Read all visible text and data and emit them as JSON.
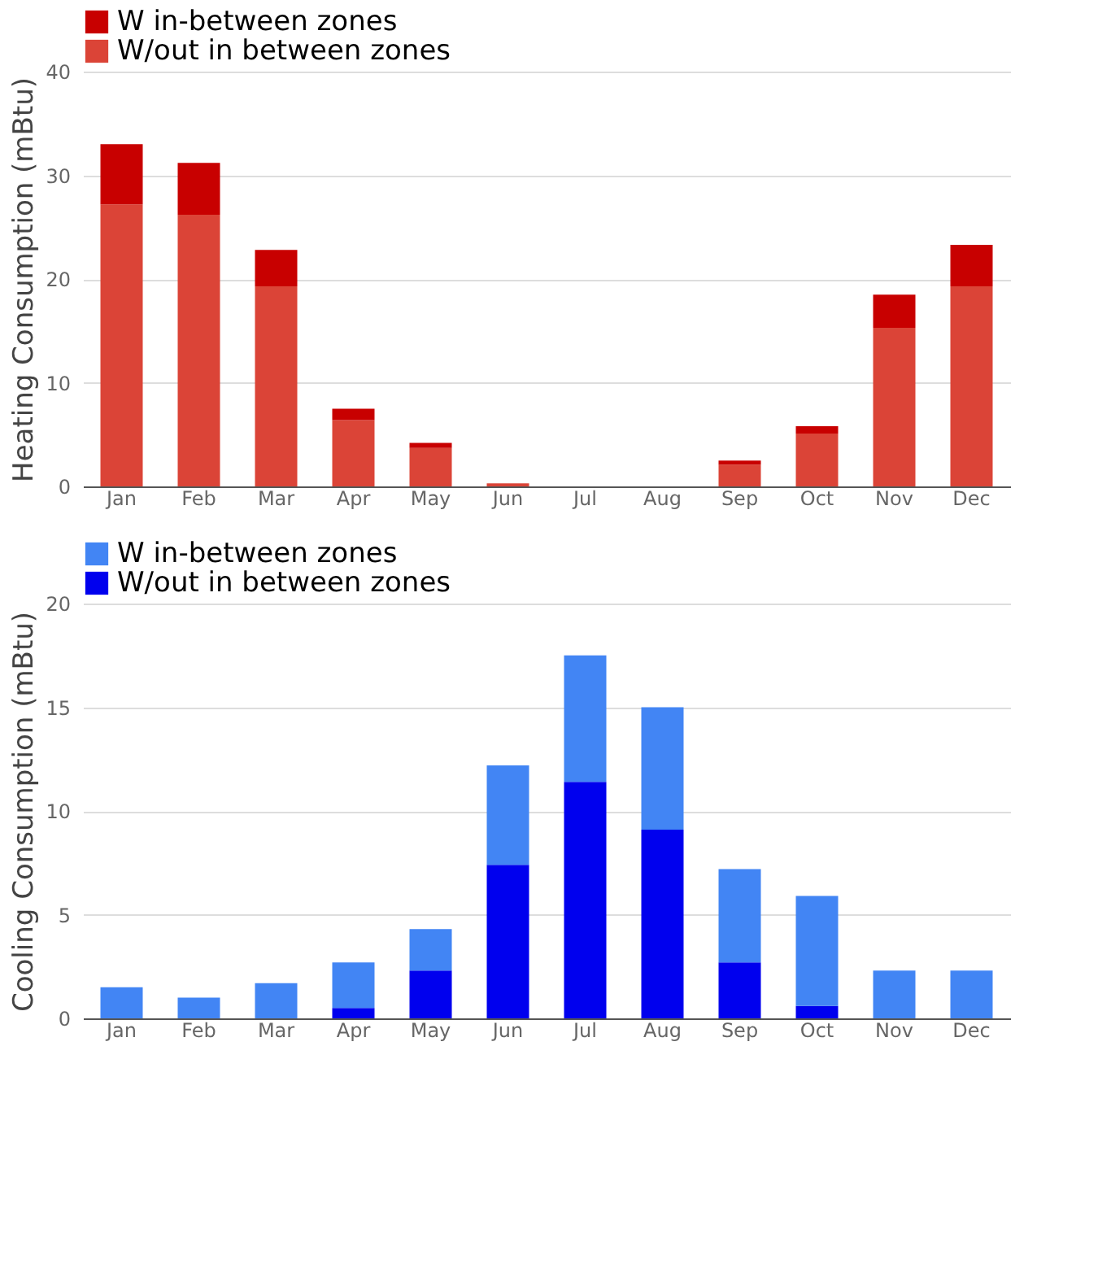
{
  "chart_data": [
    {
      "type": "bar",
      "stacked": true,
      "ylabel": "Heating Consumption (mBtu)",
      "categories": [
        "Jan",
        "Feb",
        "Mar",
        "Apr",
        "May",
        "Jun",
        "Jul",
        "Aug",
        "Sep",
        "Oct",
        "Nov",
        "Dec"
      ],
      "series": [
        {
          "name": "W/out in between zones",
          "color": "#db4437",
          "values": [
            27.2,
            26.2,
            19.3,
            6.4,
            3.7,
            0.3,
            0,
            0,
            2.1,
            5.1,
            15.3,
            19.3
          ]
        },
        {
          "name": "W in-between zones",
          "color": "#c80000",
          "values": [
            5.8,
            5.0,
            3.5,
            1.1,
            0.5,
            0,
            0,
            0,
            0.4,
            0.7,
            3.2,
            4.0
          ]
        }
      ],
      "ylim": [
        0,
        40
      ],
      "yticks": [
        0,
        10,
        20,
        30,
        40
      ],
      "grid": "y",
      "legend": "top"
    },
    {
      "type": "bar",
      "stacked": true,
      "ylabel": "Cooling Consumption (mBtu)",
      "categories": [
        "Jan",
        "Feb",
        "Mar",
        "Apr",
        "May",
        "Jun",
        "Jul",
        "Aug",
        "Sep",
        "Oct",
        "Nov",
        "Dec"
      ],
      "series": [
        {
          "name": "W/out in between zones",
          "color": "#0000ee",
          "values": [
            0,
            0,
            0,
            0.5,
            2.3,
            7.4,
            11.4,
            9.1,
            2.7,
            0.6,
            0,
            0
          ]
        },
        {
          "name": "W in-between zones",
          "color": "#4285f4",
          "values": [
            1.5,
            1.0,
            1.7,
            2.2,
            2.0,
            4.8,
            6.1,
            5.9,
            4.5,
            5.3,
            2.3,
            2.3
          ]
        }
      ],
      "ylim": [
        0,
        20
      ],
      "yticks": [
        0,
        5,
        10,
        15,
        20
      ],
      "grid": "y",
      "legend": "top"
    }
  ]
}
